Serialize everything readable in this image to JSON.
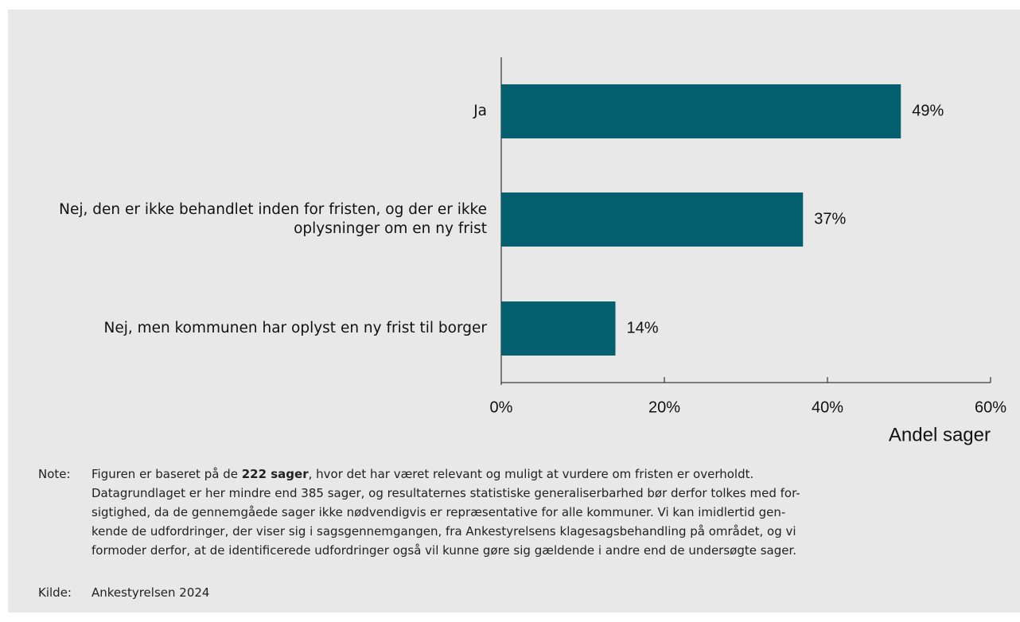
{
  "chart_data": {
    "type": "bar",
    "orientation": "horizontal",
    "categories": [
      "Ja",
      "Nej, den er ikke behandlet inden for fristen, og der er ikke oplysninger om en ny frist",
      "Nej, men kommunen har oplyst en ny frist til borger"
    ],
    "values": [
      49,
      37,
      14
    ],
    "value_labels": [
      "49%",
      "37%",
      "14%"
    ],
    "color": "#04606e",
    "xlim": [
      0,
      60
    ],
    "xticks": [
      {
        "value": 0,
        "label": "0%"
      },
      {
        "value": 20,
        "label": "20%"
      },
      {
        "value": 40,
        "label": "40%"
      },
      {
        "value": 60,
        "label": "60%"
      }
    ],
    "xlabel": "Andel sager",
    "grid": false
  },
  "note": {
    "label": "Note:",
    "first_line": [
      "Figuren er baseret på de ",
      "222 sager",
      ", hvor det har været relevant og muligt at vurdere om fristen er overholdt."
    ],
    "lines": [
      "Datagrundlaget er her mindre end 385 sager, og resultaternes statistiske generaliserbarhed bør derfor tolkes med for-",
      "sigtighed, da de gennemgåede sager ikke nødvendigvis er repræsentative for alle kommuner.  Vi kan imidlertid gen-",
      "kende de udfordringer, der viser sig i sagsgennemgangen, fra Ankestyrelsens klagesagsbehandling på området, og vi",
      "formoder derfor, at de identificerede udfordringer også vil kunne gøre sig gældende i andre end de undersøgte sager."
    ]
  },
  "source": {
    "label": "Kilde:",
    "text": "Ankestyrelsen 2024"
  }
}
